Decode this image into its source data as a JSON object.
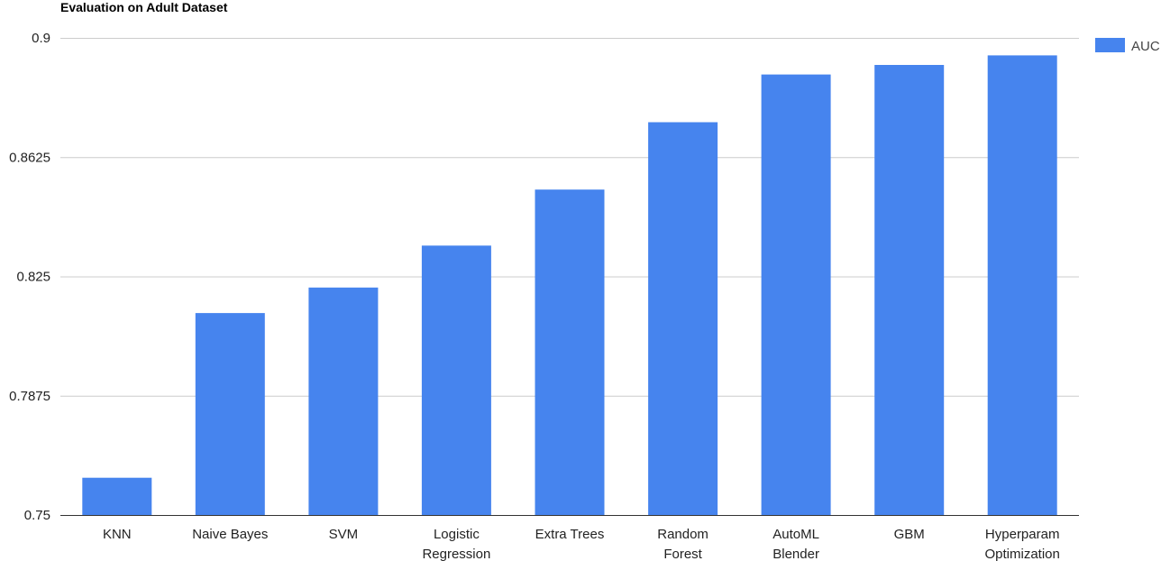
{
  "chart_data": {
    "type": "bar",
    "title": "Evaluation on Adult Dataset",
    "xlabel": "",
    "ylabel": "",
    "categories": [
      [
        "KNN"
      ],
      [
        "Naive Bayes"
      ],
      [
        "SVM"
      ],
      [
        "Logistic",
        "Regression"
      ],
      [
        "Extra Trees"
      ],
      [
        "Random",
        "Forest"
      ],
      [
        "AutoML",
        "Blender"
      ],
      [
        "GBM"
      ],
      [
        "Hyperparam",
        "Optimization"
      ]
    ],
    "series": [
      {
        "name": "AUC",
        "color": "#4684ee",
        "values": [
          0.7617,
          0.8135,
          0.8215,
          0.8347,
          0.8523,
          0.8735,
          0.8885,
          0.8915,
          0.8945
        ]
      }
    ],
    "ylim": [
      0.75,
      0.9
    ],
    "yticks": [
      "0.75",
      "0.7875",
      "0.825",
      "0.8625",
      "0.9"
    ],
    "grid": true,
    "legend_position": "right"
  }
}
